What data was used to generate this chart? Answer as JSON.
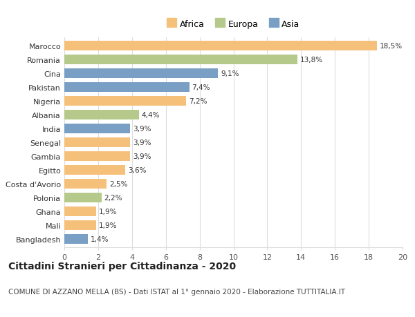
{
  "countries": [
    "Marocco",
    "Romania",
    "Cina",
    "Pakistan",
    "Nigeria",
    "Albania",
    "India",
    "Senegal",
    "Gambia",
    "Egitto",
    "Costa d'Avorio",
    "Polonia",
    "Ghana",
    "Mali",
    "Bangladesh"
  ],
  "values": [
    18.5,
    13.8,
    9.1,
    7.4,
    7.2,
    4.4,
    3.9,
    3.9,
    3.9,
    3.6,
    2.5,
    2.2,
    1.9,
    1.9,
    1.4
  ],
  "labels": [
    "18,5%",
    "13,8%",
    "9,1%",
    "7,4%",
    "7,2%",
    "4,4%",
    "3,9%",
    "3,9%",
    "3,9%",
    "3,6%",
    "2,5%",
    "2,2%",
    "1,9%",
    "1,9%",
    "1,4%"
  ],
  "continents": [
    "Africa",
    "Europa",
    "Asia",
    "Asia",
    "Africa",
    "Europa",
    "Asia",
    "Africa",
    "Africa",
    "Africa",
    "Africa",
    "Europa",
    "Africa",
    "Africa",
    "Asia"
  ],
  "colors": {
    "Africa": "#F5C07A",
    "Europa": "#B5C98A",
    "Asia": "#7A9FC4"
  },
  "xlim": [
    0,
    20
  ],
  "xticks": [
    0,
    2,
    4,
    6,
    8,
    10,
    12,
    14,
    16,
    18,
    20
  ],
  "title": "Cittadini Stranieri per Cittadinanza - 2020",
  "subtitle": "COMUNE DI AZZANO MELLA (BS) - Dati ISTAT al 1° gennaio 2020 - Elaborazione TUTTITALIA.IT",
  "title_fontsize": 10,
  "subtitle_fontsize": 7.5,
  "label_fontsize": 7.5,
  "tick_fontsize": 8,
  "legend_fontsize": 9,
  "bar_height": 0.7,
  "background_color": "#ffffff",
  "grid_color": "#dddddd"
}
